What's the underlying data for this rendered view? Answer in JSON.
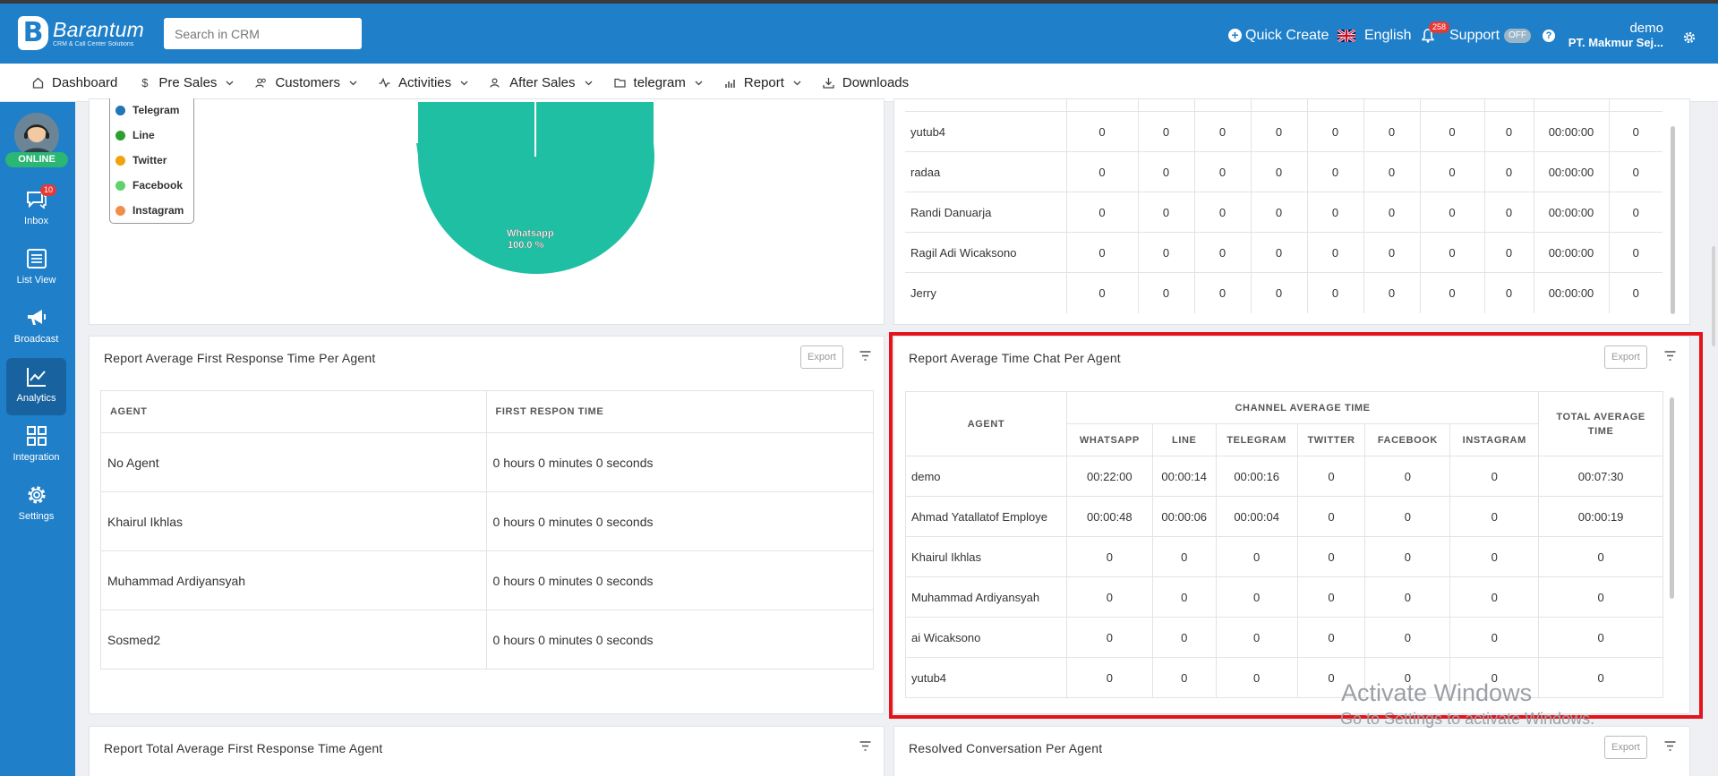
{
  "header": {
    "logo_name": "Barantum",
    "logo_tagline": "CRM & Call Center Solutions",
    "search_placeholder": "Search in CRM",
    "quick_create": "Quick Create",
    "language": "English",
    "notification_count": "258",
    "support": "Support",
    "support_toggle": "OFF",
    "user_name": "demo",
    "user_org": "PT. Makmur Sej..."
  },
  "nav": {
    "items": [
      {
        "label": "Dashboard",
        "icon": "home-icon"
      },
      {
        "label": "Pre Sales",
        "icon": "dollar-icon"
      },
      {
        "label": "Customers",
        "icon": "users-icon"
      },
      {
        "label": "Activities",
        "icon": "activity-icon"
      },
      {
        "label": "After Sales",
        "icon": "user-icon"
      },
      {
        "label": "telegram",
        "icon": "folder-icon"
      },
      {
        "label": "Report",
        "icon": "bar-chart-icon"
      },
      {
        "label": "Downloads",
        "icon": "download-icon"
      }
    ]
  },
  "sidebar": {
    "status": "ONLINE",
    "inbox_badge": "10",
    "items": [
      {
        "label": "Inbox"
      },
      {
        "label": "List View"
      },
      {
        "label": "Broadcast"
      },
      {
        "label": "Analytics"
      },
      {
        "label": "Integration"
      },
      {
        "label": "Settings"
      }
    ]
  },
  "pie": {
    "legend": [
      {
        "label": "Telegram",
        "color": "#1f77b4"
      },
      {
        "label": "Line",
        "color": "#2ca02c"
      },
      {
        "label": "Twitter",
        "color": "#f0a30a"
      },
      {
        "label": "Facebook",
        "color": "#5fd36a"
      },
      {
        "label": "Instagram",
        "color": "#f28e4c"
      }
    ],
    "slice_label": "Whatsapp",
    "slice_pct": "100.0 %",
    "slice_color": "#1fbfa3"
  },
  "top_table": {
    "rows": [
      {
        "agent": "yutub4",
        "values": [
          "0",
          "0",
          "0",
          "0",
          "0",
          "0",
          "0",
          "0",
          "00:00:00",
          "0"
        ]
      },
      {
        "agent": "radaa",
        "values": [
          "0",
          "0",
          "0",
          "0",
          "0",
          "0",
          "0",
          "0",
          "00:00:00",
          "0"
        ]
      },
      {
        "agent": "Randi Danuarja",
        "values": [
          "0",
          "0",
          "0",
          "0",
          "0",
          "0",
          "0",
          "0",
          "00:00:00",
          "0"
        ]
      },
      {
        "agent": "Ragil Adi Wicaksono",
        "values": [
          "0",
          "0",
          "0",
          "0",
          "0",
          "0",
          "0",
          "0",
          "00:00:00",
          "0"
        ]
      },
      {
        "agent": "Jerry",
        "values": [
          "0",
          "0",
          "0",
          "0",
          "0",
          "0",
          "0",
          "0",
          "00:00:00",
          "0"
        ]
      }
    ]
  },
  "first_response": {
    "title": "Report Average First Response Time Per Agent",
    "export": "Export",
    "col_agent": "AGENT",
    "col_time": "FIRST RESPON TIME",
    "rows": [
      {
        "agent": "No Agent",
        "time": "0 hours 0 minutes 0 seconds"
      },
      {
        "agent": "Khairul Ikhlas",
        "time": "0 hours 0 minutes 0 seconds"
      },
      {
        "agent": "Muhammad Ardiyansyah",
        "time": "0 hours 0 minutes 0 seconds"
      },
      {
        "agent": "Sosmed2",
        "time": "0 hours 0 minutes 0 seconds"
      }
    ]
  },
  "avg_chat": {
    "title": "Report Average Time Chat Per Agent",
    "export": "Export",
    "col_agent": "AGENT",
    "col_group": "CHANNEL AVERAGE TIME",
    "col_total": "TOTAL AVERAGE TIME",
    "channels": [
      "WHATSAPP",
      "LINE",
      "TELEGRAM",
      "TWITTER",
      "FACEBOOK",
      "INSTAGRAM"
    ],
    "rows": [
      {
        "agent": "demo",
        "values": [
          "00:22:00",
          "00:00:14",
          "00:00:16",
          "0",
          "0",
          "0",
          "00:07:30"
        ]
      },
      {
        "agent": "Ahmad Yatallatof Employe",
        "values": [
          "00:00:48",
          "00:00:06",
          "00:00:04",
          "0",
          "0",
          "0",
          "00:00:19"
        ]
      },
      {
        "agent": "Khairul Ikhlas",
        "values": [
          "0",
          "0",
          "0",
          "0",
          "0",
          "0",
          "0"
        ]
      },
      {
        "agent": "Muhammad Ardiyansyah",
        "values": [
          "0",
          "0",
          "0",
          "0",
          "0",
          "0",
          "0"
        ]
      },
      {
        "agent": "ai Wicaksono",
        "values": [
          "0",
          "0",
          "0",
          "0",
          "0",
          "0",
          "0"
        ]
      },
      {
        "agent": "yutub4",
        "values": [
          "0",
          "0",
          "0",
          "0",
          "0",
          "0",
          "0"
        ]
      }
    ]
  },
  "bottom": {
    "left_title": "Report Total Average First Response Time Agent",
    "right_title": "Resolved Conversation Per Agent",
    "export": "Export"
  },
  "watermark": {
    "line1": "Activate Windows",
    "line2": "Go to Settings to activate Windows."
  }
}
